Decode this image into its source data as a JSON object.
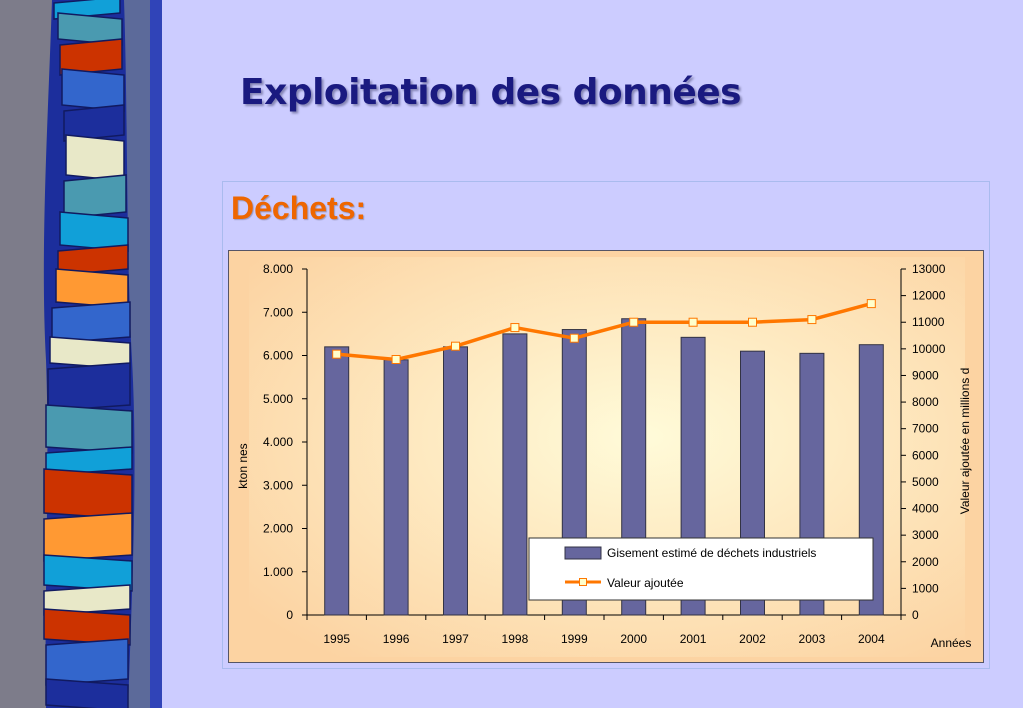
{
  "slide": {
    "title": "Exploitation des données",
    "subtitle": "Déchets:"
  },
  "colors": {
    "background": "#ccccff",
    "title": "#1a1a80",
    "subtitle": "#ee6600",
    "bar": "#66669e",
    "line": "#ff7700",
    "plot_area": "#fcd3a2"
  },
  "chart_data": {
    "type": "bar",
    "categories": [
      "1995",
      "1996",
      "1997",
      "1998",
      "1999",
      "2000",
      "2001",
      "2002",
      "2003",
      "2004"
    ],
    "series": [
      {
        "name": "Gisement estimé de déchets industriels",
        "type": "bar",
        "axis": "left",
        "values": [
          6.2,
          5.9,
          6.2,
          6.5,
          6.6,
          6.85,
          6.42,
          6.1,
          6.05,
          6.25
        ]
      },
      {
        "name": "Valeur ajoutée",
        "type": "line",
        "axis": "right",
        "values": [
          9800,
          9600,
          10100,
          10800,
          10400,
          11000,
          11000,
          11000,
          11100,
          11700
        ]
      }
    ],
    "xlabel": "Années",
    "ylabel": "kton nes",
    "y2label": "Valeur ajoutée en millions d",
    "ylim": [
      0,
      8
    ],
    "y2lim": [
      0,
      13000
    ],
    "yticks": [
      "0",
      "1.000",
      "2.000",
      "3.000",
      "4.000",
      "5.000",
      "6.000",
      "7.000",
      "8.000"
    ],
    "y2ticks": [
      "0",
      "1000",
      "2000",
      "3000",
      "4000",
      "5000",
      "6000",
      "7000",
      "8000",
      "9000",
      "10000",
      "11000",
      "12000",
      "13000"
    ],
    "grid": false,
    "legend": "bottom-right"
  }
}
